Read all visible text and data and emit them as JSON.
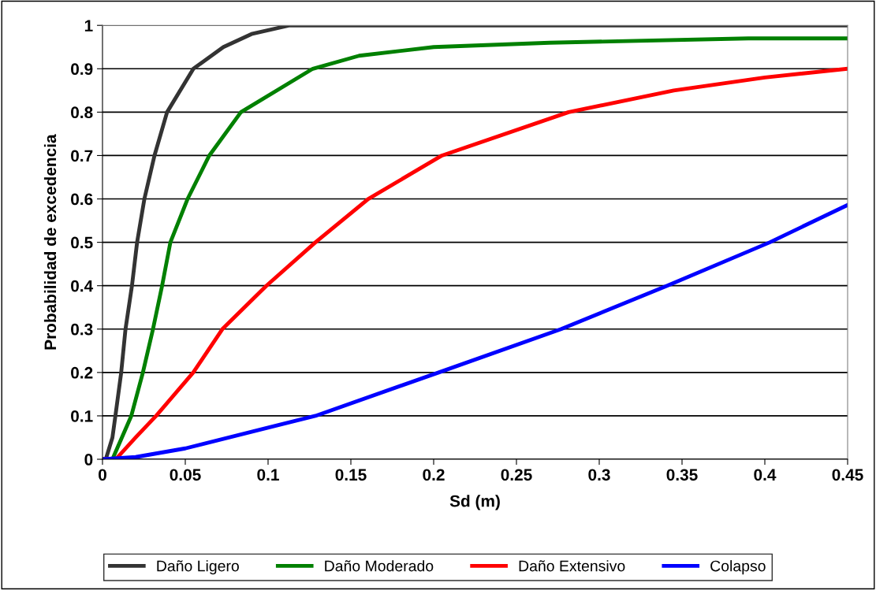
{
  "chart_data": {
    "type": "line",
    "xlabel": "Sd (m)",
    "ylabel": "Probabilidad de excedencia",
    "xlim": [
      0,
      0.45
    ],
    "xticks": [
      0,
      0.05,
      0.1,
      0.15,
      0.2,
      0.25,
      0.3,
      0.35,
      0.4,
      0.45
    ],
    "ylim": [
      0,
      1
    ],
    "yticks": [
      0,
      0.1,
      0.2,
      0.3,
      0.4,
      0.5,
      0.6,
      0.7,
      0.8,
      0.9,
      1
    ],
    "grid": "y",
    "legend": "bottom",
    "marker": "none",
    "line_style": "solid",
    "series": [
      {
        "name": "Daño Ligero",
        "color": "#333333",
        "x": [
          0,
          0.002,
          0.006,
          0.0078,
          0.0113,
          0.0139,
          0.0178,
          0.0209,
          0.0253,
          0.0314,
          0.039,
          0.0549,
          0.073,
          0.09,
          0.113,
          0.45
        ],
        "values": [
          0,
          0,
          0.05,
          0.1,
          0.2,
          0.3,
          0.4,
          0.5,
          0.6,
          0.7,
          0.8,
          0.9,
          0.95,
          0.98,
          1,
          1
        ]
      },
      {
        "name": "Daño Moderado",
        "color": "#008000",
        "x": [
          0,
          0.006,
          0.0174,
          0.0244,
          0.0305,
          0.036,
          0.041,
          0.0514,
          0.0645,
          0.0836,
          0.127,
          0.155,
          0.2,
          0.27,
          0.39,
          0.45
        ],
        "values": [
          0,
          0,
          0.1,
          0.2,
          0.3,
          0.4,
          0.5,
          0.6,
          0.7,
          0.8,
          0.9,
          0.93,
          0.95,
          0.96,
          0.97,
          0.97
        ]
      },
      {
        "name": "Daño Extensivo",
        "color": "#ff0000",
        "x": [
          0,
          0.008,
          0.02,
          0.0324,
          0.0548,
          0.0724,
          0.099,
          0.1286,
          0.1605,
          0.205,
          0.2815,
          0.345,
          0.4,
          0.45
        ],
        "values": [
          0,
          0,
          0.05,
          0.1,
          0.2,
          0.3,
          0.4,
          0.5,
          0.6,
          0.7,
          0.8,
          0.85,
          0.88,
          0.9
        ]
      },
      {
        "name": "Colapso",
        "color": "#0000ff",
        "x": [
          0,
          0.02,
          0.05,
          0.1,
          0.1286,
          0.203,
          0.277,
          0.341,
          0.403,
          0.45
        ],
        "values": [
          0,
          0.005,
          0.025,
          0.073,
          0.1,
          0.2,
          0.3,
          0.4,
          0.5,
          0.586
        ]
      }
    ]
  }
}
